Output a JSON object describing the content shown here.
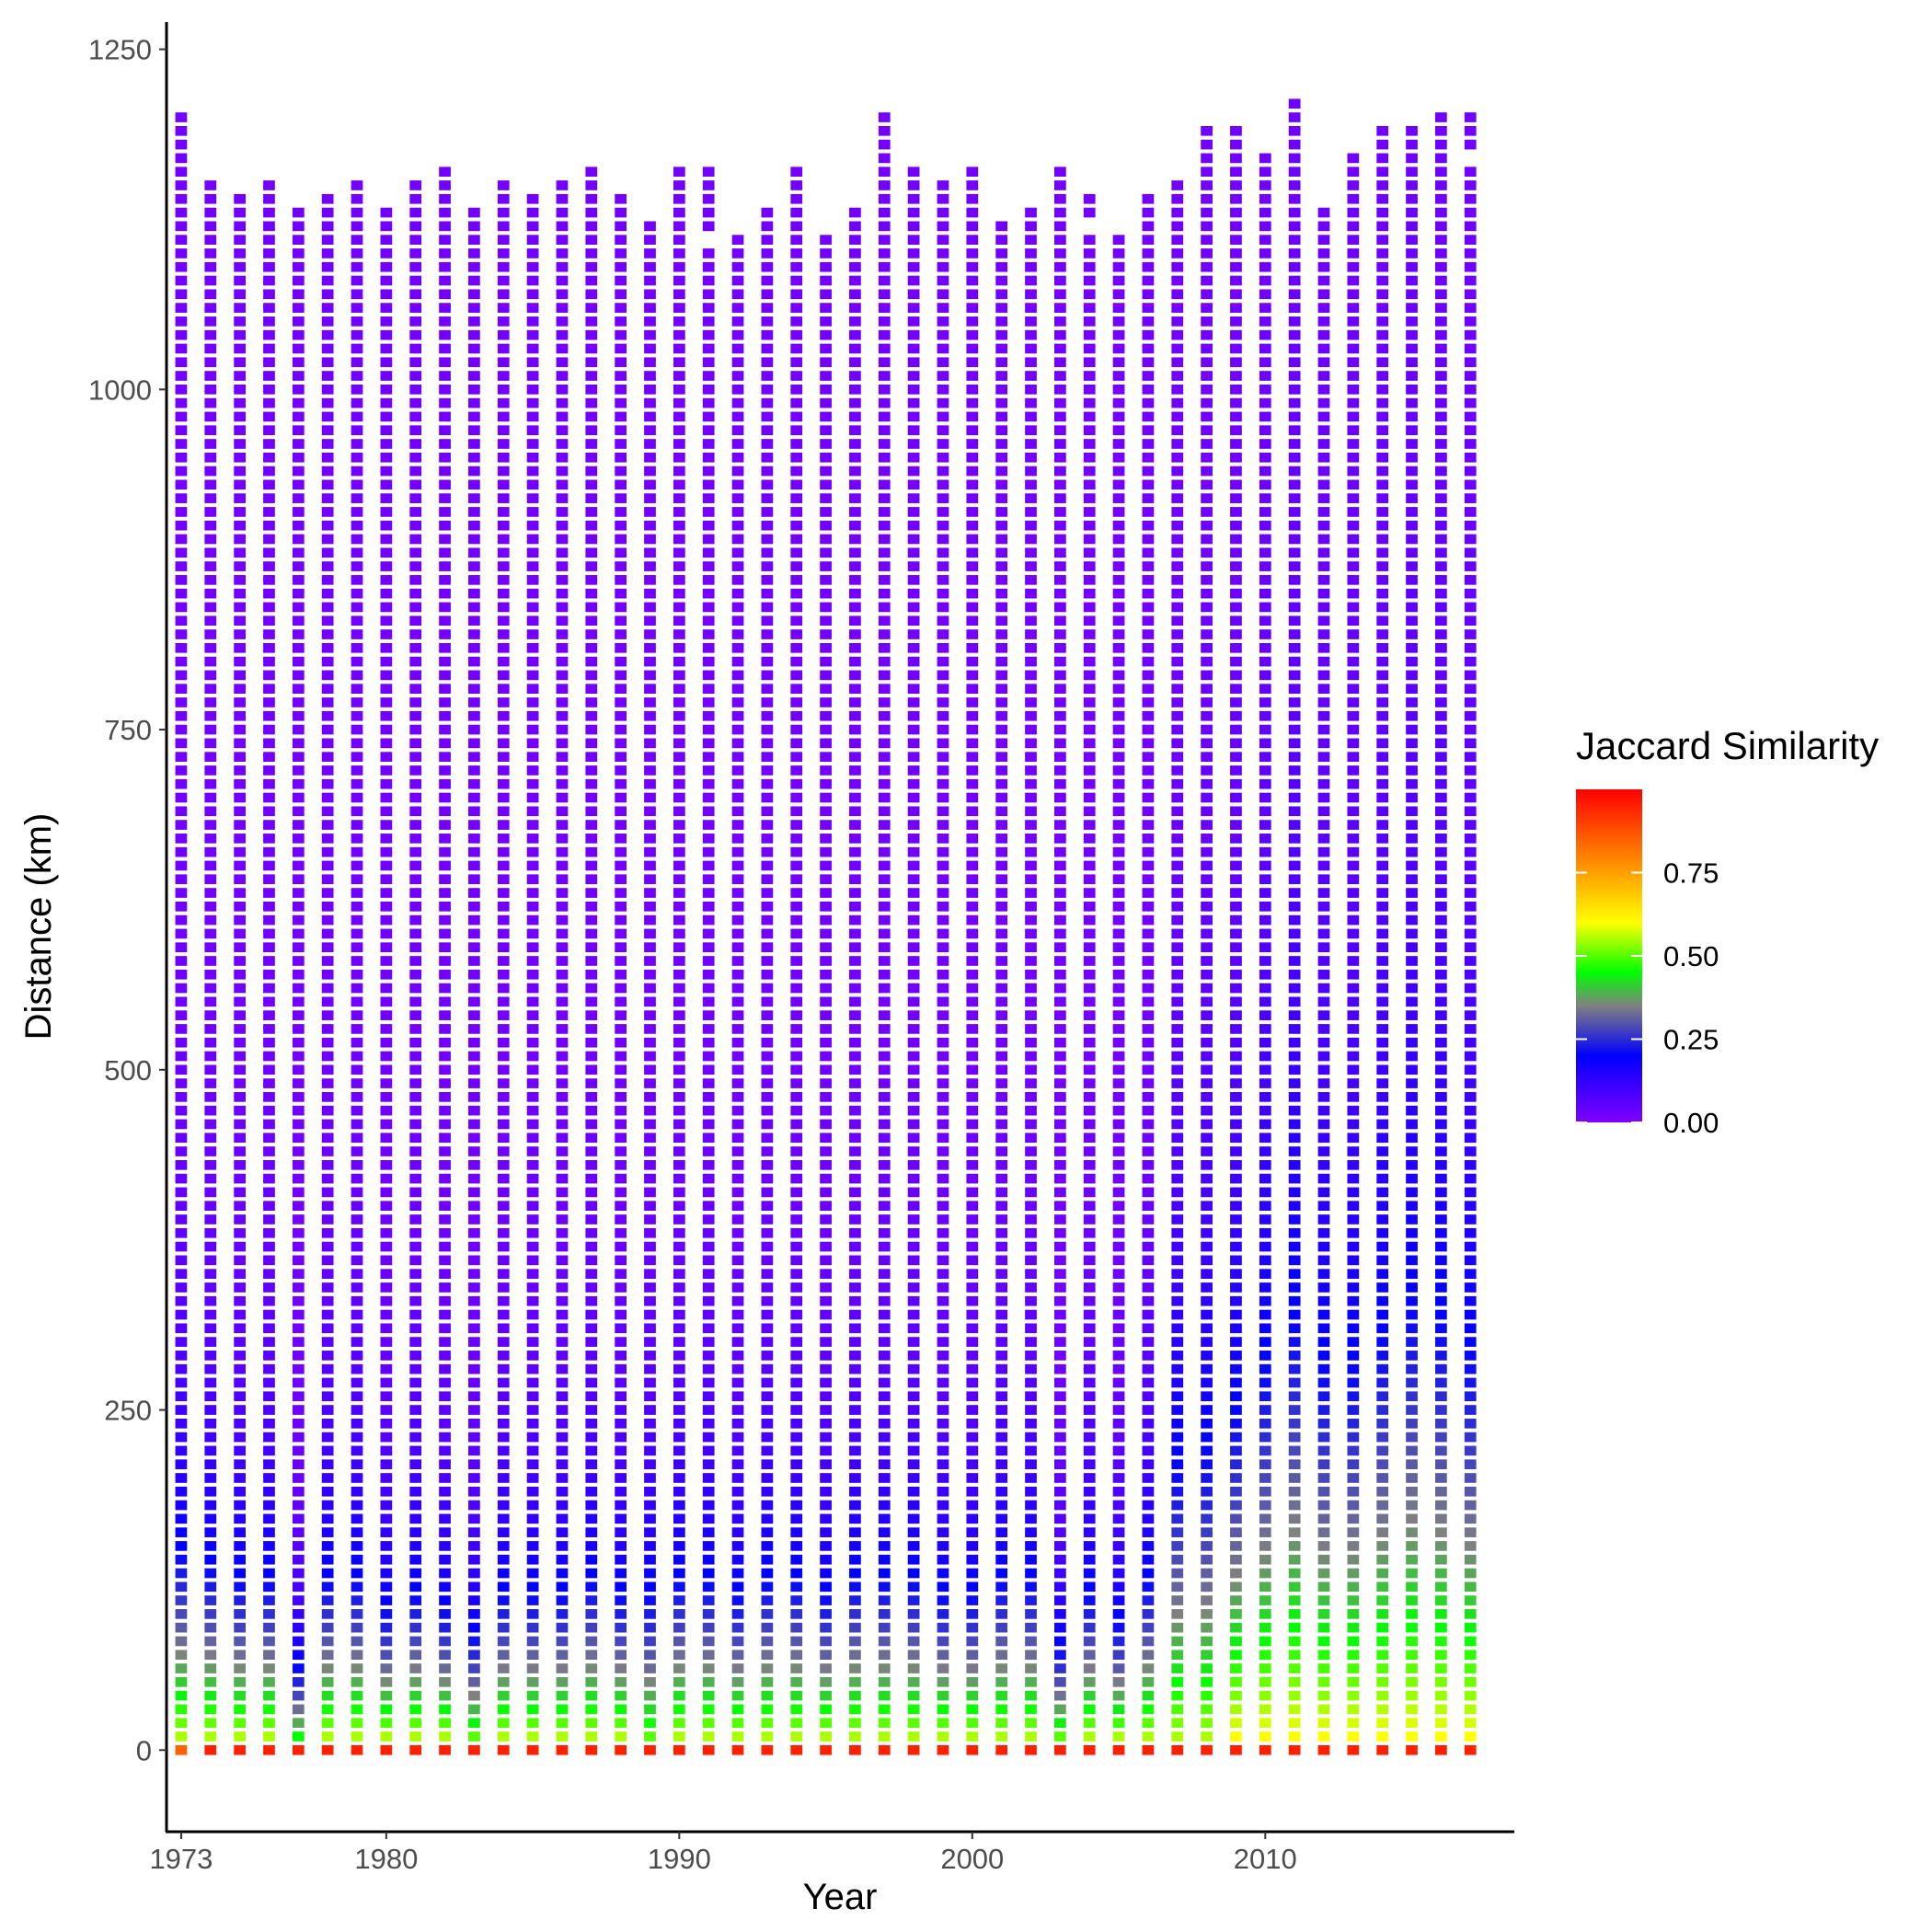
{
  "chart_data": {
    "type": "heatmap",
    "xlabel": "Year",
    "ylabel": "Distance (km)",
    "x_ticks": [
      1973,
      1980,
      1990,
      2000,
      2010
    ],
    "y_ticks": [
      0,
      250,
      500,
      750,
      1000,
      1250
    ],
    "xlim": [
      1972.5,
      2018.5
    ],
    "ylim": [
      -60,
      1270
    ],
    "cell_step_km": 10,
    "legend": {
      "title": "Jaccard Similarity",
      "ticks": [
        "0.00",
        "0.25",
        "0.50",
        "0.75"
      ],
      "tick_values": [
        0.0,
        0.25,
        0.5,
        0.75
      ],
      "range": [
        0.0,
        1.0
      ],
      "position": "right",
      "gradient_colors": [
        "#8000ff",
        "#0000ff",
        "#808080",
        "#00ff00",
        "#ffff00",
        "#ff0000"
      ],
      "gradient_stops": [
        0.0,
        0.2,
        0.35,
        0.45,
        0.6,
        1.0
      ]
    },
    "years": [
      1973,
      1974,
      1975,
      1976,
      1977,
      1978,
      1979,
      1980,
      1981,
      1982,
      1983,
      1984,
      1985,
      1986,
      1987,
      1988,
      1989,
      1990,
      1991,
      1992,
      1993,
      1994,
      1995,
      1996,
      1997,
      1998,
      1999,
      2000,
      2001,
      2002,
      2003,
      2004,
      2005,
      2006,
      2007,
      2008,
      2009,
      2010,
      2011,
      2012,
      2013,
      2014,
      2015,
      2016,
      2017
    ],
    "max_distance_km": [
      1200,
      1150,
      1140,
      1150,
      1130,
      1140,
      1150,
      1130,
      1150,
      1160,
      1130,
      1150,
      1140,
      1150,
      1160,
      1140,
      1120,
      1160,
      1160,
      1110,
      1130,
      1160,
      1110,
      1130,
      1200,
      1160,
      1150,
      1160,
      1120,
      1130,
      1160,
      1140,
      1110,
      1140,
      1150,
      1190,
      1190,
      1170,
      1210,
      1130,
      1170,
      1190,
      1190,
      1200,
      1200
    ],
    "missing_cells_km": {
      "1991": [
        1110
      ],
      "1993": [
        1150
      ],
      "2004": [
        1120
      ],
      "2017": [
        1170
      ]
    },
    "similarity_at_0km": [
      0.85,
      0.95,
      0.95,
      0.95,
      0.95,
      0.95,
      0.95,
      0.95,
      0.95,
      0.95,
      0.95,
      0.95,
      0.95,
      0.95,
      0.95,
      0.95,
      0.95,
      0.95,
      0.95,
      0.95,
      0.95,
      0.95,
      0.95,
      0.95,
      0.95,
      0.95,
      0.95,
      0.95,
      0.95,
      0.95,
      0.95,
      0.95,
      0.95,
      0.95,
      0.95,
      0.95,
      0.95,
      0.95,
      0.95,
      0.95,
      0.95,
      0.95,
      0.95,
      0.95,
      0.95
    ],
    "similarity_at_10km": [
      0.55,
      0.55,
      0.55,
      0.55,
      0.45,
      0.55,
      0.55,
      0.55,
      0.55,
      0.55,
      0.5,
      0.55,
      0.55,
      0.55,
      0.55,
      0.55,
      0.5,
      0.55,
      0.55,
      0.55,
      0.55,
      0.55,
      0.55,
      0.55,
      0.55,
      0.55,
      0.55,
      0.55,
      0.55,
      0.55,
      0.5,
      0.55,
      0.55,
      0.55,
      0.55,
      0.55,
      0.6,
      0.6,
      0.6,
      0.6,
      0.6,
      0.6,
      0.6,
      0.6,
      0.6
    ],
    "decay_length_km": [
      130,
      120,
      110,
      110,
      60,
      110,
      110,
      90,
      100,
      90,
      80,
      100,
      100,
      100,
      110,
      100,
      110,
      110,
      110,
      100,
      110,
      110,
      100,
      110,
      110,
      110,
      100,
      100,
      110,
      110,
      70,
      100,
      80,
      110,
      190,
      200,
      210,
      240,
      270,
      240,
      240,
      260,
      280,
      270,
      250
    ]
  }
}
